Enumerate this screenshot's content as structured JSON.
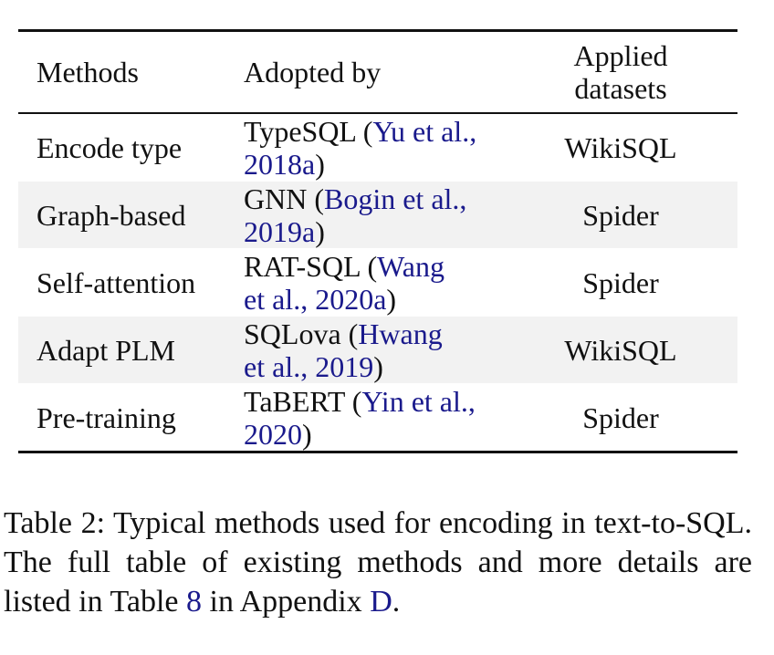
{
  "table": {
    "headers": {
      "methods": "Methods",
      "adopted_by": "Adopted by",
      "applied_line1": "Applied",
      "applied_line2": "datasets"
    },
    "rows": [
      {
        "method": "Encode type",
        "adopted_line1_text": "TypeSQL (",
        "adopted_line1_cite": "Yu et al.,",
        "adopted_line2_cite": "2018a",
        "adopted_line2_text": ")",
        "dataset": "WikiSQL"
      },
      {
        "method": "Graph-based",
        "adopted_line1_text": "GNN (",
        "adopted_line1_cite": "Bogin et al.,",
        "adopted_line2_cite": "2019a",
        "adopted_line2_text": ")",
        "dataset": "Spider"
      },
      {
        "method": "Self-attention",
        "adopted_line1_text": "RAT-SQL (",
        "adopted_line1_cite": "Wang",
        "adopted_line2_cite": "et al., 2020a",
        "adopted_line2_text": ")",
        "dataset": "Spider"
      },
      {
        "method": "Adapt PLM",
        "adopted_line1_text": "SQLova (",
        "adopted_line1_cite": "Hwang",
        "adopted_line2_cite": "et al., 2019",
        "adopted_line2_text": ")",
        "dataset": "WikiSQL"
      },
      {
        "method": "Pre-training",
        "adopted_line1_text": "TaBERT (",
        "adopted_line1_cite": "Yin et al.,",
        "adopted_line2_cite": "2020",
        "adopted_line2_text": ")",
        "dataset": "Spider"
      }
    ]
  },
  "caption": {
    "part1": "Table 2:  Typical methods used for encoding in text-to-SQL. The full table of existing methods and more details are listed in Table ",
    "ref_table": "8",
    "part2": " in Appendix ",
    "ref_appendix": "D",
    "part3": "."
  },
  "colors": {
    "citation": "#1a1a8c",
    "row_shade": "#f2f2f2",
    "text": "#111111"
  }
}
